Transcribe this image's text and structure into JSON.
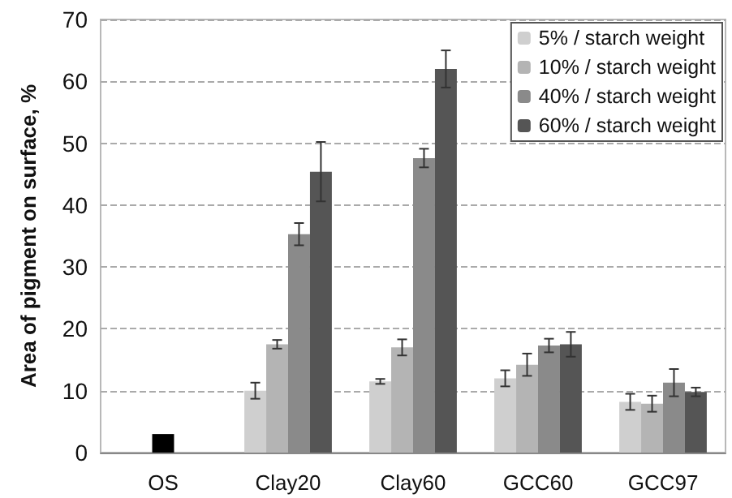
{
  "chart_data": {
    "type": "bar",
    "ylabel": "Area of pigment on surface, %",
    "categories": [
      "OS",
      "Clay20",
      "Clay60",
      "GCC60",
      "GCC97"
    ],
    "series": [
      {
        "name": "5% / starch weight",
        "color": "#cfcfcf",
        "values": [
          null,
          10,
          11.5,
          12,
          8.2
        ],
        "errors": [
          null,
          1.3,
          0.4,
          1.3,
          1.3
        ]
      },
      {
        "name": "10% / starch weight",
        "color": "#b4b4b4",
        "values": [
          null,
          17.5,
          17,
          14.2,
          7.9
        ],
        "errors": [
          null,
          0.7,
          1.3,
          1.8,
          1.3
        ]
      },
      {
        "name": "40% / starch weight",
        "color": "#8a8a8a",
        "values": [
          null,
          35.3,
          47.6,
          17.3,
          11.3
        ],
        "errors": [
          null,
          1.8,
          1.5,
          1.1,
          2.2
        ]
      },
      {
        "name": "60% / starch weight",
        "color": "#555555",
        "values": [
          null,
          45.4,
          62,
          17.5,
          9.8
        ],
        "errors": [
          null,
          4.8,
          3,
          2,
          0.7
        ]
      },
      {
        "color": "#000000",
        "values": [
          3,
          null,
          null,
          null,
          null
        ]
      }
    ],
    "ylim": [
      0,
      70
    ],
    "yticks": [
      0,
      10,
      20,
      30,
      40,
      50,
      60,
      70
    ],
    "grid": "y",
    "legend": "top right"
  }
}
